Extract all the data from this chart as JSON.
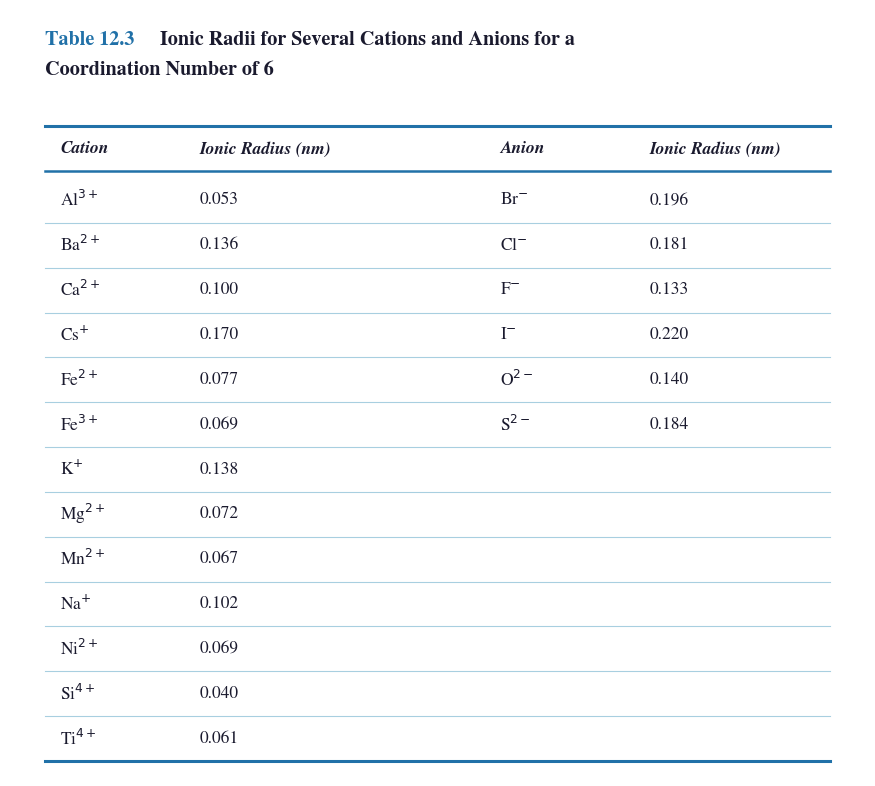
{
  "title_blue": "Table 12.3",
  "title_rest_line1": "  Ionic Radii for Several Cations and Anions for a",
  "title_line2": "Coordination Number of 6",
  "header": [
    "Cation",
    "Ionic Radius (nm)",
    "Anion",
    "Ionic Radius (nm)"
  ],
  "cations": [
    [
      "Al$^{3+}$",
      "0.053"
    ],
    [
      "Ba$^{2+}$",
      "0.136"
    ],
    [
      "Ca$^{2+}$",
      "0.100"
    ],
    [
      "Cs$^{+}$",
      "0.170"
    ],
    [
      "Fe$^{2+}$",
      "0.077"
    ],
    [
      "Fe$^{3+}$",
      "0.069"
    ],
    [
      "K$^{+}$",
      "0.138"
    ],
    [
      "Mg$^{2+}$",
      "0.072"
    ],
    [
      "Mn$^{2+}$",
      "0.067"
    ],
    [
      "Na$^{+}$",
      "0.102"
    ],
    [
      "Ni$^{2+}$",
      "0.069"
    ],
    [
      "Si$^{4+}$",
      "0.040"
    ],
    [
      "Ti$^{4+}$",
      "0.061"
    ]
  ],
  "anions": [
    [
      "Br$^{-}$",
      "0.196"
    ],
    [
      "Cl$^{-}$",
      "0.181"
    ],
    [
      "F$^{-}$",
      "0.133"
    ],
    [
      "I$^{-}$",
      "0.220"
    ],
    [
      "O$^{2-}$",
      "0.140"
    ],
    [
      "S$^{2-}$",
      "0.184"
    ]
  ],
  "title_color": "#2171a8",
  "header_line_color": "#2171a8",
  "row_line_color": "#a8cfe0",
  "bottom_line_color": "#2171a8",
  "bg_color": "#ffffff",
  "text_color": "#1a1a2e",
  "header_fontsize": 12.5,
  "data_fontsize": 12.5,
  "title_fontsize": 14.5
}
